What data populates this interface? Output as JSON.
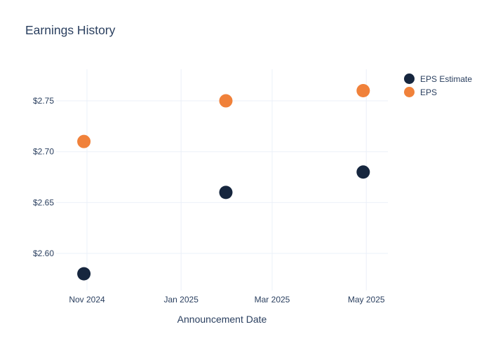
{
  "title": "Earnings History",
  "legend": {
    "items": [
      {
        "label": "EPS Estimate",
        "color": "#16263e"
      },
      {
        "label": "EPS",
        "color": "#f0813a"
      }
    ]
  },
  "chart_data": {
    "type": "scatter",
    "title": "Earnings History",
    "xlabel": "Announcement Date",
    "ylabel": "",
    "grid": true,
    "legend_position": "right",
    "grid_color": "#ebf0f8",
    "text_color": "#2a3f5f",
    "x_axis": {
      "label": "Announcement Date",
      "range": [
        "2024-10-12",
        "2025-05-15"
      ],
      "ticks": [
        {
          "date": "2024-11-01",
          "label": "Nov 2024"
        },
        {
          "date": "2025-01-01",
          "label": "Jan 2025"
        },
        {
          "date": "2025-03-01",
          "label": "Mar 2025"
        },
        {
          "date": "2025-05-01",
          "label": "May 2025"
        }
      ]
    },
    "y_axis": {
      "range": [
        2.567,
        2.781
      ],
      "ticks": [
        {
          "value": 2.6,
          "label": "$2.60"
        },
        {
          "value": 2.65,
          "label": "$2.65"
        },
        {
          "value": 2.7,
          "label": "$2.70"
        },
        {
          "value": 2.75,
          "label": "$2.75"
        }
      ]
    },
    "series": [
      {
        "name": "EPS Estimate",
        "color": "#16263e",
        "points": [
          {
            "date": "2024-10-30",
            "value": 2.58
          },
          {
            "date": "2025-01-30",
            "value": 2.66
          },
          {
            "date": "2025-04-29",
            "value": 2.68
          }
        ]
      },
      {
        "name": "EPS",
        "color": "#f0813a",
        "points": [
          {
            "date": "2024-10-30",
            "value": 2.71
          },
          {
            "date": "2025-01-30",
            "value": 2.75
          },
          {
            "date": "2025-04-29",
            "value": 2.76
          }
        ]
      }
    ]
  }
}
